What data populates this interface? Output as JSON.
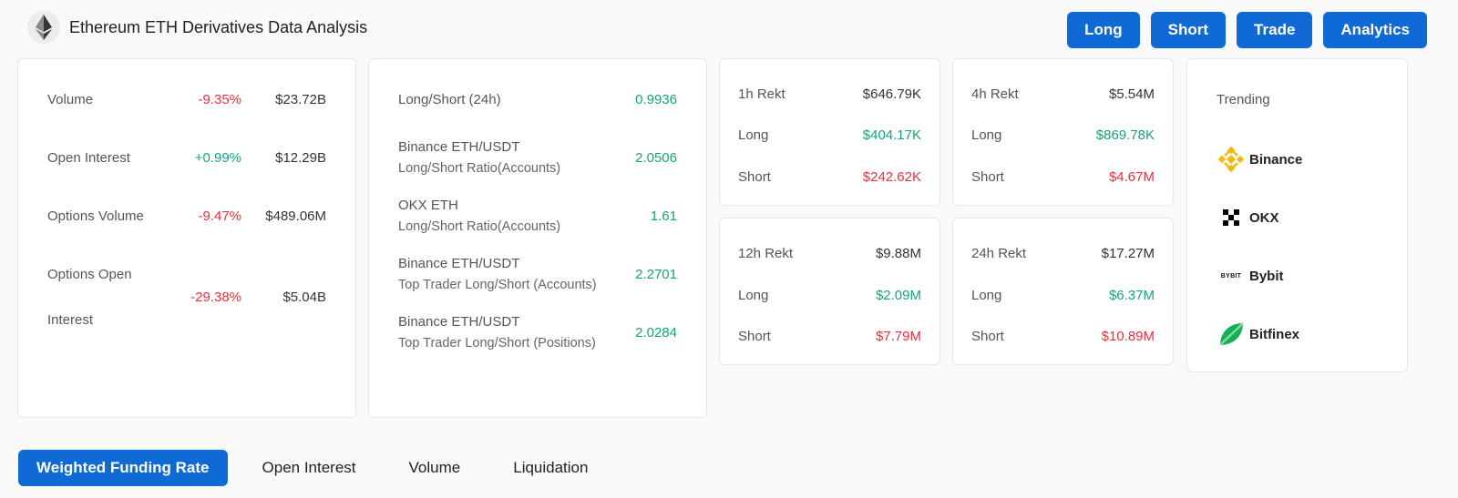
{
  "header": {
    "title": "Ethereum ETH Derivatives Data Analysis",
    "logo_icon": "ethereum-icon"
  },
  "top_buttons": [
    "Long",
    "Short",
    "Trade",
    "Analytics"
  ],
  "stats": [
    {
      "label": "Volume",
      "change": "-9.35%",
      "value": "$23.72B"
    },
    {
      "label": "Open Interest",
      "change": "+0.99%",
      "value": "$12.29B"
    },
    {
      "label": "Options Volume",
      "change": "-9.47%",
      "value": "$489.06M"
    },
    {
      "label_line1": "Options Open",
      "label_line2": "Interest",
      "change": "-29.38%",
      "value": "$5.04B"
    }
  ],
  "ratios": [
    {
      "label": "Long/Short (24h)",
      "value": "0.9936"
    },
    {
      "label": "Binance ETH/USDT",
      "sub": "Long/Short Ratio(Accounts)",
      "value": "2.0506"
    },
    {
      "label": "OKX ETH",
      "sub": "Long/Short Ratio(Accounts)",
      "value": "1.61"
    },
    {
      "label": "Binance ETH/USDT",
      "sub": "Top Trader Long/Short (Accounts)",
      "value": "2.2701"
    },
    {
      "label": "Binance ETH/USDT",
      "sub": "Top Trader Long/Short (Positions)",
      "value": "2.0284"
    }
  ],
  "rekt": [
    {
      "label": "1h Rekt",
      "total": "$646.79K",
      "long_label": "Long",
      "long": "$404.17K",
      "short_label": "Short",
      "short": "$242.62K"
    },
    {
      "label": "4h Rekt",
      "total": "$5.54M",
      "long_label": "Long",
      "long": "$869.78K",
      "short_label": "Short",
      "short": "$4.67M"
    },
    {
      "label": "12h Rekt",
      "total": "$9.88M",
      "long_label": "Long",
      "long": "$2.09M",
      "short_label": "Short",
      "short": "$7.79M"
    },
    {
      "label": "24h Rekt",
      "total": "$17.27M",
      "long_label": "Long",
      "long": "$6.37M",
      "short_label": "Short",
      "short": "$10.89M"
    }
  ],
  "trending": {
    "title": "Trending",
    "items": [
      {
        "name": "Binance",
        "icon": "binance-icon",
        "color": "#f0b90b"
      },
      {
        "name": "OKX",
        "icon": "okx-icon",
        "color": "#000000"
      },
      {
        "name": "Bybit",
        "icon": "bybit-icon",
        "logo_text": "BYBIT",
        "color": "#f7a600"
      },
      {
        "name": "Bitfinex",
        "icon": "bitfinex-icon",
        "color": "#16b157"
      }
    ]
  },
  "tabs": [
    {
      "label": "Weighted Funding Rate",
      "active": true
    },
    {
      "label": "Open Interest",
      "active": false
    },
    {
      "label": "Volume",
      "active": false
    },
    {
      "label": "Liquidation",
      "active": false
    }
  ],
  "colors": {
    "accent": "#0f6ad6",
    "positive": "#15a37c",
    "negative": "#e8303f"
  }
}
